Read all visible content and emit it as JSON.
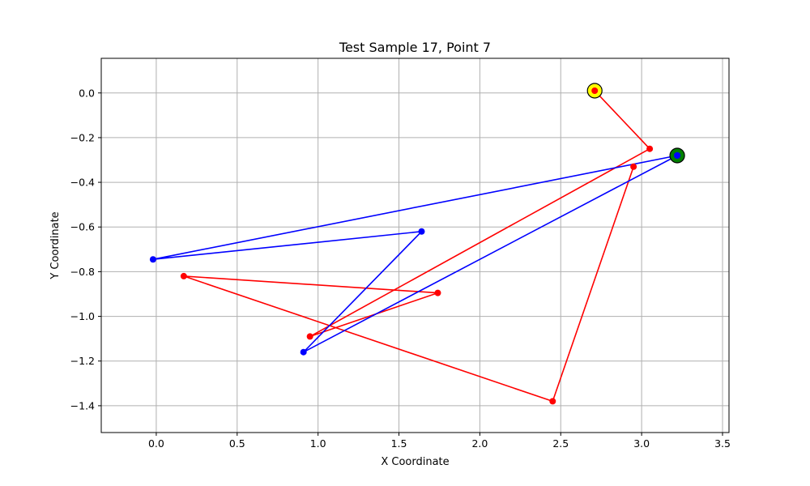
{
  "chart_data": {
    "type": "line",
    "title": "Test Sample 17, Point 7",
    "xlabel": "X Coordinate",
    "ylabel": "Y Coordinate",
    "xlim": [
      -0.34,
      3.54
    ],
    "ylim": [
      -1.52,
      0.155
    ],
    "grid": true,
    "legend": "none",
    "xticks": [
      {
        "value": 0.0,
        "label": "0.0"
      },
      {
        "value": 0.5,
        "label": "0.5"
      },
      {
        "value": 1.0,
        "label": "1.0"
      },
      {
        "value": 1.5,
        "label": "1.5"
      },
      {
        "value": 2.0,
        "label": "2.0"
      },
      {
        "value": 2.5,
        "label": "2.5"
      },
      {
        "value": 3.0,
        "label": "3.0"
      },
      {
        "value": 3.5,
        "label": "3.5"
      }
    ],
    "yticks": [
      {
        "value": 0.0,
        "label": "0.0"
      },
      {
        "value": -0.2,
        "label": "−0.2"
      },
      {
        "value": -0.4,
        "label": "−0.4"
      },
      {
        "value": -0.6,
        "label": "−0.6"
      },
      {
        "value": -0.8,
        "label": "−0.8"
      },
      {
        "value": -1.0,
        "label": "−1.0"
      },
      {
        "value": -1.2,
        "label": "−1.2"
      },
      {
        "value": -1.4,
        "label": "−1.4"
      }
    ],
    "series": [
      {
        "color": "#ff0000",
        "points": [
          [
            2.71,
            0.01
          ],
          [
            3.05,
            -0.25
          ],
          [
            0.95,
            -1.09
          ],
          [
            1.74,
            -0.895
          ],
          [
            0.17,
            -0.82
          ],
          [
            2.45,
            -1.38
          ],
          [
            2.95,
            -0.33
          ]
        ]
      },
      {
        "color": "#0000ff",
        "points": [
          [
            3.22,
            -0.28
          ],
          [
            0.91,
            -1.16
          ],
          [
            1.64,
            -0.62
          ],
          [
            -0.02,
            -0.745
          ],
          [
            3.22,
            -0.28
          ]
        ]
      }
    ],
    "markers": [
      {
        "x": 2.71,
        "y": 0.01,
        "fill": "#ffff00",
        "edge": "#000000"
      },
      {
        "x": 3.22,
        "y": -0.28,
        "fill": "#008000",
        "edge": "#000000"
      }
    ],
    "colors": {
      "grid": "#b0b0b0",
      "axes": "#000000",
      "background": "#ffffff"
    }
  }
}
